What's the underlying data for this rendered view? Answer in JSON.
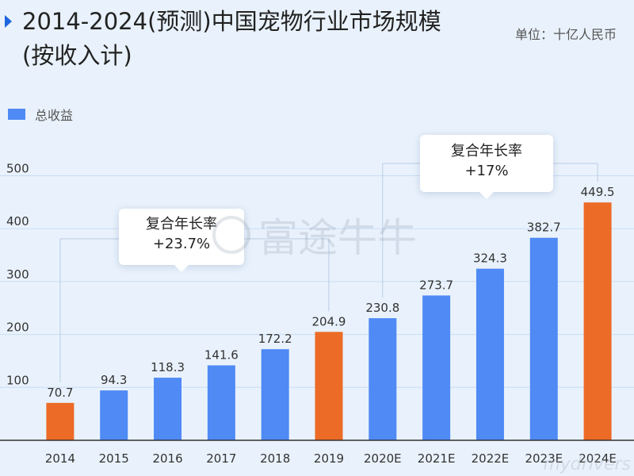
{
  "header": {
    "title": "2014-2024(预测)中国宠物行业市场规模(按收入计)",
    "unit": "单位：十亿人民币"
  },
  "legend": {
    "label": "总收益",
    "color": "#4f8af5"
  },
  "callouts": [
    {
      "label": "复合年长率",
      "value": "+23.7%"
    },
    {
      "label": "复合年长率",
      "value": "+17%"
    }
  ],
  "watermark": "富途牛牛",
  "corner_watermark": "mydrivers",
  "chart_data": {
    "type": "bar",
    "categories": [
      "2014",
      "2015",
      "2016",
      "2017",
      "2018",
      "2019",
      "2020E",
      "2021E",
      "2022E",
      "2023E",
      "2024E"
    ],
    "series": [
      {
        "name": "总收益",
        "values": [
          70.7,
          94.3,
          118.3,
          141.6,
          172.2,
          204.9,
          230.8,
          273.7,
          324.3,
          382.7,
          449.5
        ]
      }
    ],
    "data_labels": [
      "70.7",
      "94.3",
      "118.3",
      "141.6",
      "172.2",
      "204.9",
      "230.8",
      "273.7",
      "324.3",
      "382.7",
      "449.5"
    ],
    "highlight_indices": [
      0,
      5,
      10
    ],
    "colors": {
      "default": "#4f8af5",
      "highlight": "#ec6b26",
      "grid": "#c9dcf3",
      "axis": "#333333"
    },
    "ylim": [
      0,
      500
    ],
    "yticks": [
      100,
      200,
      300,
      400,
      500
    ],
    "grid": true,
    "legend_position": "top-left"
  }
}
